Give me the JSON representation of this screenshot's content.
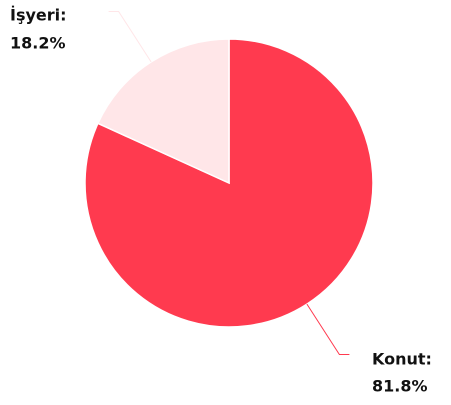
{
  "chart_data": {
    "type": "pie",
    "categories": [
      "Konut:",
      "İşyeri:"
    ],
    "values": [
      81.8,
      18.2
    ],
    "value_labels": [
      "81.8%",
      "18.2%"
    ],
    "colors": [
      "#ff3a4f",
      "#ffe6e8"
    ]
  }
}
